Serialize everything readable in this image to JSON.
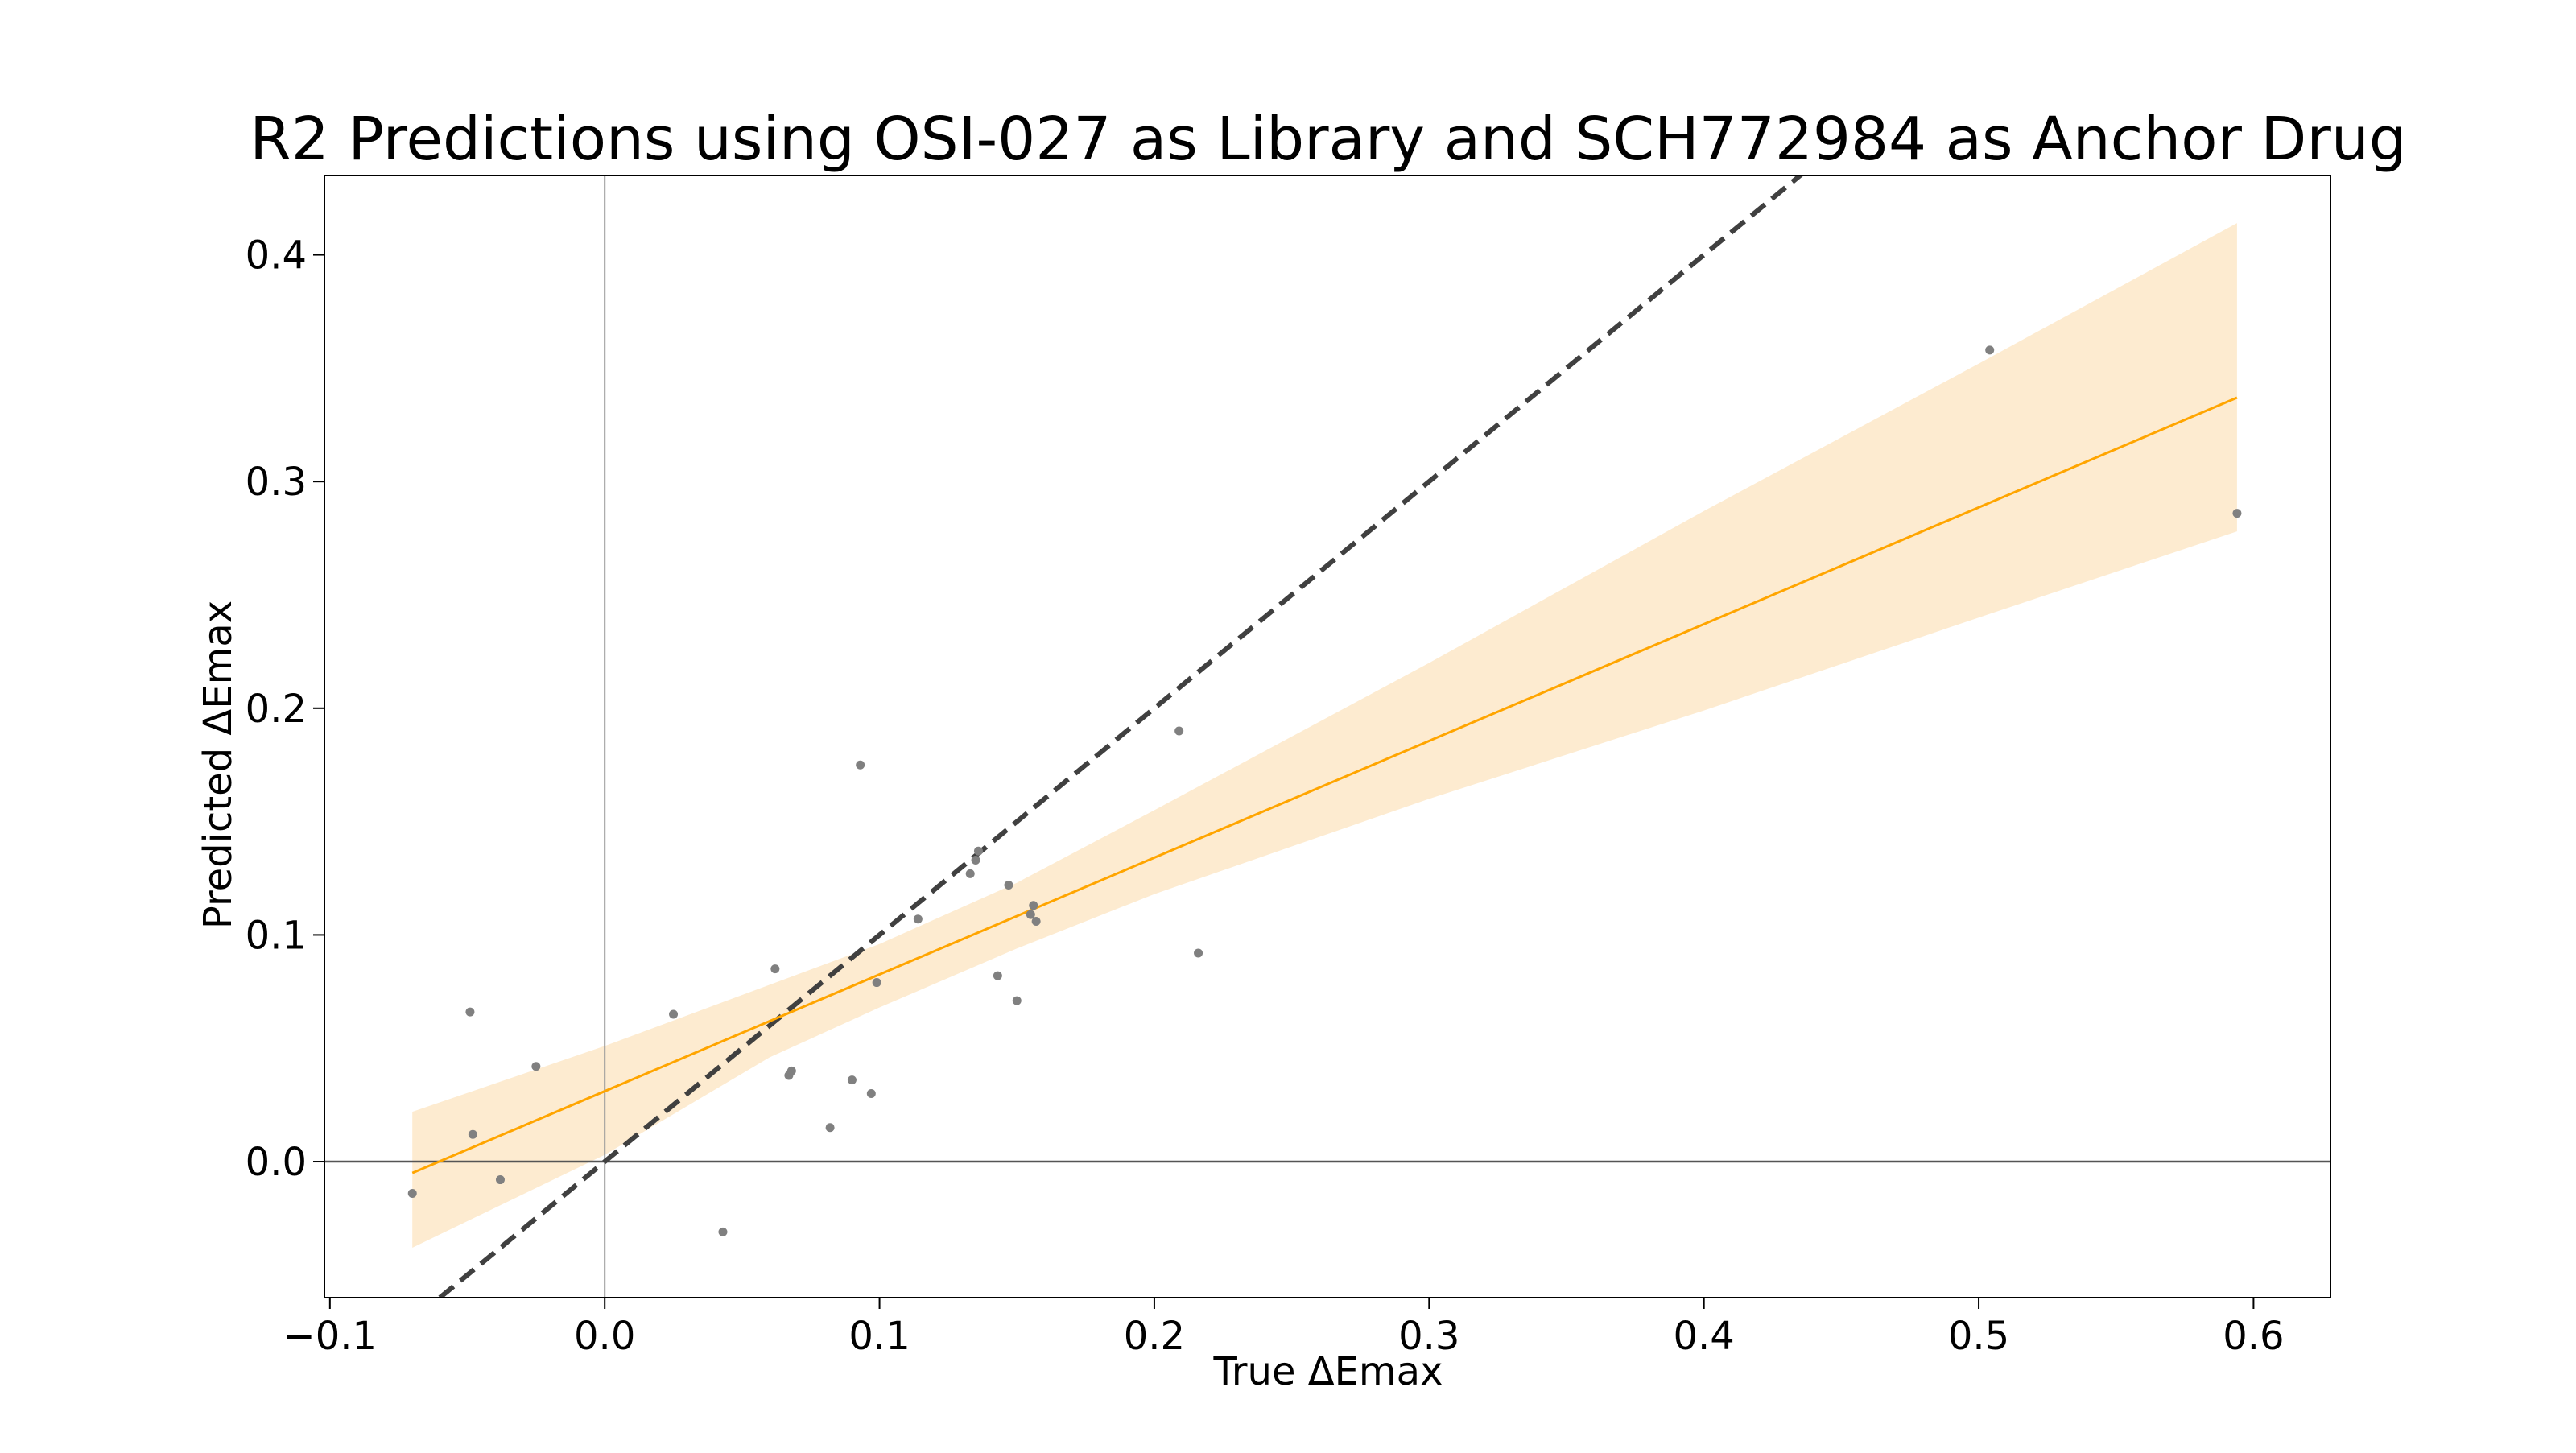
{
  "chart_data": {
    "type": "scatter",
    "title": "R2 Predictions using OSI-027 as Library and SCH772984 as Anchor Drug",
    "xlabel": "True ΔEmax",
    "ylabel": "Predicted ΔEmax",
    "xlim": [
      -0.102,
      0.628
    ],
    "ylim": [
      -0.06,
      0.435
    ],
    "xticks": [
      -0.1,
      0.0,
      0.1,
      0.2,
      0.3,
      0.4,
      0.5,
      0.6
    ],
    "xtick_labels": [
      "−0.1",
      "0.0",
      "0.1",
      "0.2",
      "0.3",
      "0.4",
      "0.5",
      "0.6"
    ],
    "yticks": [
      0.0,
      0.1,
      0.2,
      0.3,
      0.4
    ],
    "ytick_labels": [
      "0.0",
      "0.1",
      "0.2",
      "0.3",
      "0.4"
    ],
    "grid": false,
    "colors": {
      "points": "#808080",
      "fit_line": "#ffa500",
      "confidence_band": "#fdebd0",
      "identity_line": "#404040",
      "zero_lines": "#555555"
    },
    "points": [
      {
        "x": -0.07,
        "y": -0.014
      },
      {
        "x": -0.049,
        "y": 0.066
      },
      {
        "x": -0.048,
        "y": 0.012
      },
      {
        "x": -0.038,
        "y": -0.008
      },
      {
        "x": -0.025,
        "y": 0.042
      },
      {
        "x": 0.025,
        "y": 0.065
      },
      {
        "x": 0.043,
        "y": -0.031
      },
      {
        "x": 0.062,
        "y": 0.085
      },
      {
        "x": 0.067,
        "y": 0.038
      },
      {
        "x": 0.068,
        "y": 0.04
      },
      {
        "x": 0.082,
        "y": 0.015
      },
      {
        "x": 0.09,
        "y": 0.036
      },
      {
        "x": 0.093,
        "y": 0.175
      },
      {
        "x": 0.097,
        "y": 0.03
      },
      {
        "x": 0.099,
        "y": 0.079
      },
      {
        "x": 0.114,
        "y": 0.107
      },
      {
        "x": 0.133,
        "y": 0.127
      },
      {
        "x": 0.135,
        "y": 0.133
      },
      {
        "x": 0.136,
        "y": 0.137
      },
      {
        "x": 0.143,
        "y": 0.082
      },
      {
        "x": 0.147,
        "y": 0.122
      },
      {
        "x": 0.15,
        "y": 0.071
      },
      {
        "x": 0.155,
        "y": 0.109
      },
      {
        "x": 0.156,
        "y": 0.113
      },
      {
        "x": 0.157,
        "y": 0.106
      },
      {
        "x": 0.209,
        "y": 0.19
      },
      {
        "x": 0.216,
        "y": 0.092
      },
      {
        "x": 0.504,
        "y": 0.358
      },
      {
        "x": 0.594,
        "y": 0.286
      }
    ],
    "regression_line": {
      "x": [
        -0.07,
        0.594
      ],
      "y": [
        -0.005,
        0.337
      ]
    },
    "confidence_band": {
      "x": [
        -0.07,
        0.0,
        0.06,
        0.1,
        0.15,
        0.2,
        0.3,
        0.4,
        0.5,
        0.594
      ],
      "upper": [
        0.022,
        0.051,
        0.078,
        0.096,
        0.123,
        0.155,
        0.22,
        0.287,
        0.352,
        0.414
      ],
      "lower": [
        -0.038,
        0.003,
        0.046,
        0.068,
        0.094,
        0.118,
        0.16,
        0.199,
        0.24,
        0.278
      ]
    },
    "identity_line": {
      "x": [
        -0.06,
        0.436
      ],
      "y": [
        -0.06,
        0.436
      ]
    }
  }
}
